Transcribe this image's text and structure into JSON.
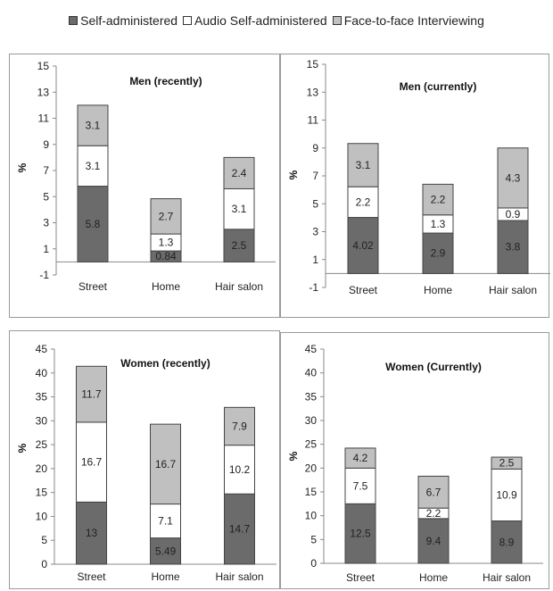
{
  "legend": {
    "items": [
      {
        "label": "Self-administered",
        "color": "#6b6b6b"
      },
      {
        "label": "Audio Self-administered",
        "color": "#ffffff"
      },
      {
        "label": "Face-to-face Interviewing",
        "color": "#c0c0c0"
      }
    ]
  },
  "chart_data": [
    {
      "type": "bar",
      "stacked": true,
      "title": "Men (recently)",
      "ylabel": "%",
      "categories": [
        "Street",
        "Home",
        "Hair salon"
      ],
      "ylim": [
        -1,
        15
      ],
      "yticks": [
        -1,
        1,
        3,
        5,
        7,
        9,
        11,
        13,
        15
      ],
      "series": [
        {
          "name": "Self-administered",
          "values": [
            5.8,
            0.84,
            2.5
          ],
          "labels": [
            "5.8",
            "0.84",
            "2.5"
          ],
          "color": "#6b6b6b"
        },
        {
          "name": "Audio Self-administered",
          "values": [
            3.1,
            1.3,
            3.1
          ],
          "labels": [
            "3.1",
            "1.3",
            "3.1"
          ],
          "color": "#ffffff"
        },
        {
          "name": "Face-to-face Interviewing",
          "values": [
            3.1,
            2.7,
            2.4
          ],
          "labels": [
            "3.1",
            "2.7",
            "2.4"
          ],
          "color": "#c0c0c0"
        }
      ]
    },
    {
      "type": "bar",
      "stacked": true,
      "title": "Men (currently)",
      "ylabel": "%",
      "categories": [
        "Street",
        "Home",
        "Hair salon"
      ],
      "ylim": [
        -1,
        15
      ],
      "yticks": [
        -1,
        1,
        3,
        5,
        7,
        9,
        11,
        13,
        15
      ],
      "series": [
        {
          "name": "Self-administered",
          "values": [
            4.02,
            2.9,
            3.8
          ],
          "labels": [
            "4.02",
            "2.9",
            "3.8"
          ],
          "color": "#6b6b6b"
        },
        {
          "name": "Audio Self-administered",
          "values": [
            2.2,
            1.3,
            0.9
          ],
          "labels": [
            "2.2",
            "1.3",
            "0.9"
          ],
          "color": "#ffffff"
        },
        {
          "name": "Face-to-face Interviewing",
          "values": [
            3.1,
            2.2,
            4.3
          ],
          "labels": [
            "3.1",
            "2.2",
            "4.3"
          ],
          "color": "#c0c0c0"
        }
      ]
    },
    {
      "type": "bar",
      "stacked": true,
      "title": "Women (recently)",
      "ylabel": "%",
      "categories": [
        "Street",
        "Home",
        "Hair salon"
      ],
      "ylim": [
        0,
        45
      ],
      "yticks": [
        0,
        5,
        10,
        15,
        20,
        25,
        30,
        35,
        40,
        45
      ],
      "series": [
        {
          "name": "Self-administered",
          "values": [
            13,
            5.49,
            14.7
          ],
          "labels": [
            "13",
            "5.49",
            "14.7"
          ],
          "color": "#6b6b6b"
        },
        {
          "name": "Audio Self-administered",
          "values": [
            16.7,
            7.1,
            10.2
          ],
          "labels": [
            "16.7",
            "7.1",
            "10.2"
          ],
          "color": "#ffffff"
        },
        {
          "name": "Face-to-face Interviewing",
          "values": [
            11.7,
            16.7,
            7.9
          ],
          "labels": [
            "11.7",
            "16.7",
            "7.9"
          ],
          "color": "#c0c0c0"
        }
      ]
    },
    {
      "type": "bar",
      "stacked": true,
      "title": "Women (Currently)",
      "ylabel": "%",
      "categories": [
        "Street",
        "Home",
        "Hair salon"
      ],
      "ylim": [
        0,
        45
      ],
      "yticks": [
        0,
        5,
        10,
        15,
        20,
        25,
        30,
        35,
        40,
        45
      ],
      "series": [
        {
          "name": "Self-administered",
          "values": [
            12.5,
            9.4,
            8.9
          ],
          "labels": [
            "12.5",
            "9.4",
            "8.9"
          ],
          "color": "#6b6b6b"
        },
        {
          "name": "Audio Self-administered",
          "values": [
            7.5,
            2.2,
            10.9
          ],
          "labels": [
            "7.5",
            "2.2",
            "10.9"
          ],
          "color": "#ffffff"
        },
        {
          "name": "Face-to-face Interviewing",
          "values": [
            4.2,
            6.7,
            2.5
          ],
          "labels": [
            "4.2",
            "6.7",
            "2.5"
          ],
          "color": "#c0c0c0"
        }
      ]
    }
  ]
}
